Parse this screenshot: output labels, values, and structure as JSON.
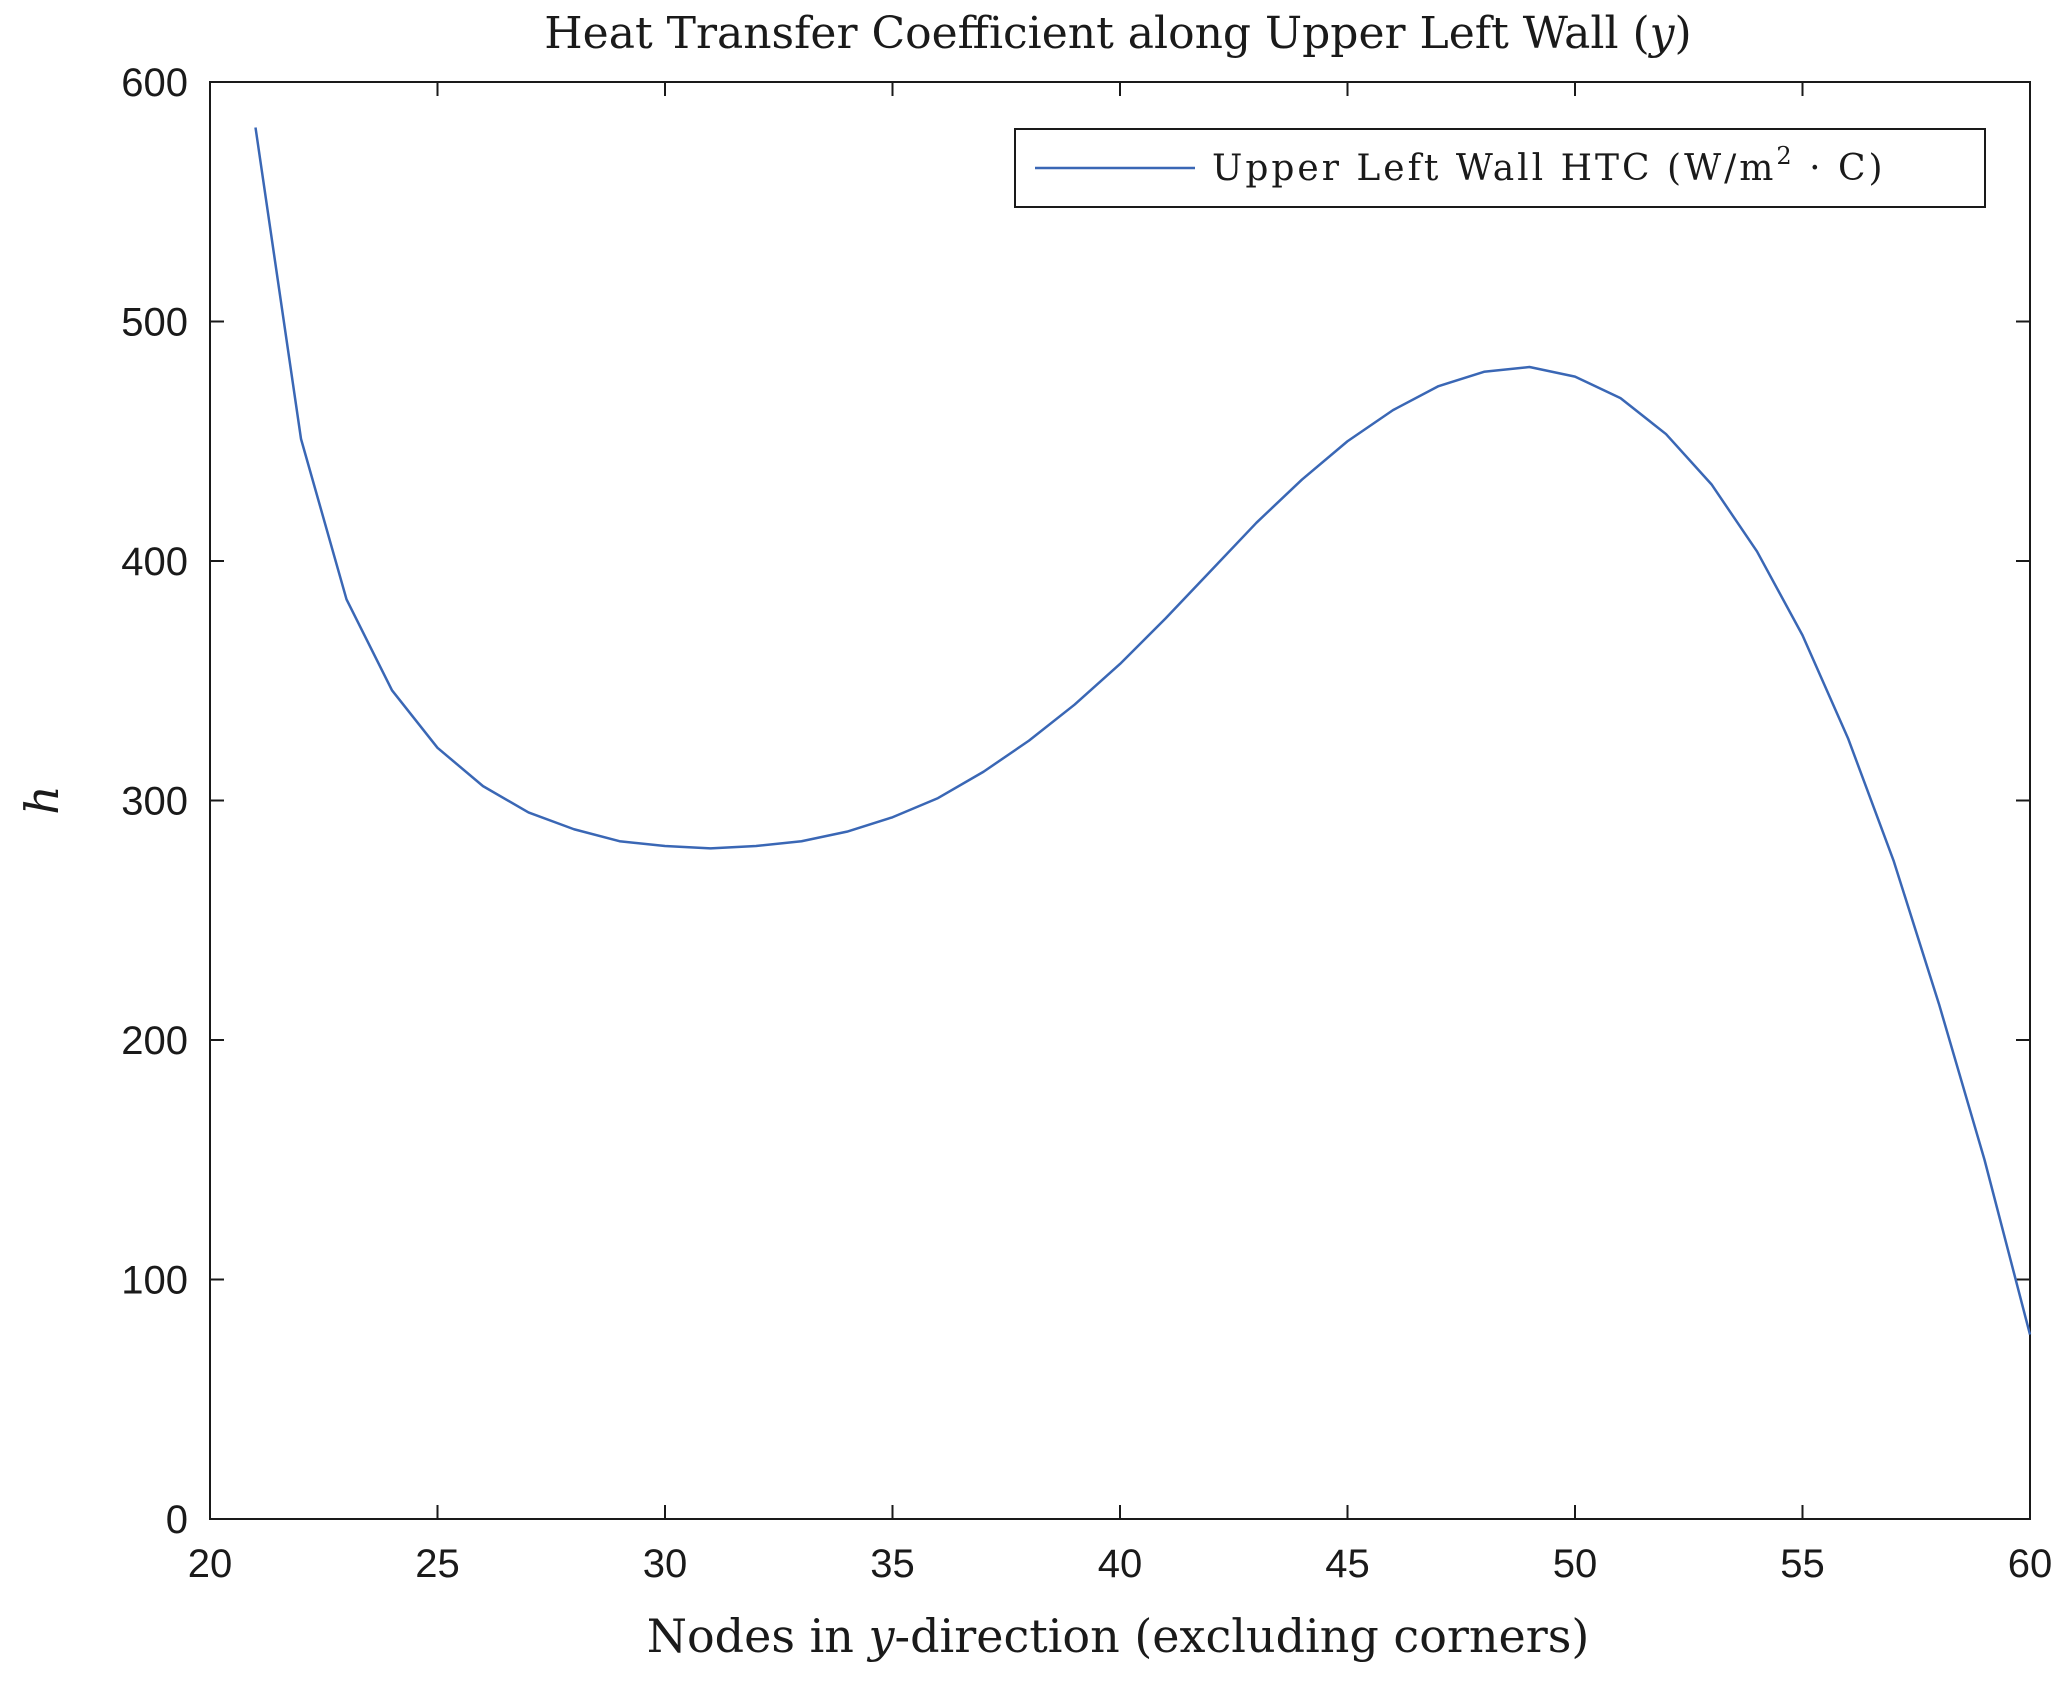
{
  "chart_data": {
    "type": "line",
    "title_parts": {
      "main": "Heat Transfer Coefficient along Upper Left Wall (",
      "var": "y",
      "end": ")"
    },
    "xlabel_parts": {
      "pre": "Nodes in ",
      "var": "y",
      "post": "-direction (excluding corners)"
    },
    "ylabel": "h",
    "xlim": [
      20,
      60
    ],
    "ylim": [
      0,
      600
    ],
    "xticks": [
      20,
      25,
      30,
      35,
      40,
      45,
      50,
      55,
      60
    ],
    "yticks": [
      0,
      100,
      200,
      300,
      400,
      500,
      600
    ],
    "grid": false,
    "legend_position": "top-right",
    "legend_parts": {
      "pre": "Upper Left Wall HTC (W/m",
      "sup": "2",
      "post": " · C)"
    },
    "line_color": "#3a67b5",
    "series": [
      {
        "name": "Upper Left Wall HTC (W/m2 · C)",
        "x": [
          21,
          22,
          23,
          24,
          25,
          26,
          27,
          28,
          29,
          30,
          31,
          32,
          33,
          34,
          35,
          36,
          37,
          38,
          39,
          40,
          41,
          42,
          43,
          44,
          45,
          46,
          47,
          48,
          49,
          50,
          51,
          52,
          53,
          54,
          55,
          56,
          57,
          58,
          59,
          60
        ],
        "y": [
          581,
          451,
          384,
          346,
          322,
          306,
          295,
          288,
          283,
          281,
          280,
          281,
          283,
          287,
          293,
          301,
          312,
          325,
          340,
          357,
          376,
          396,
          416,
          434,
          450,
          463,
          473,
          479,
          481,
          477,
          468,
          453,
          432,
          404,
          369,
          326,
          275,
          215,
          150,
          77
        ]
      }
    ]
  }
}
